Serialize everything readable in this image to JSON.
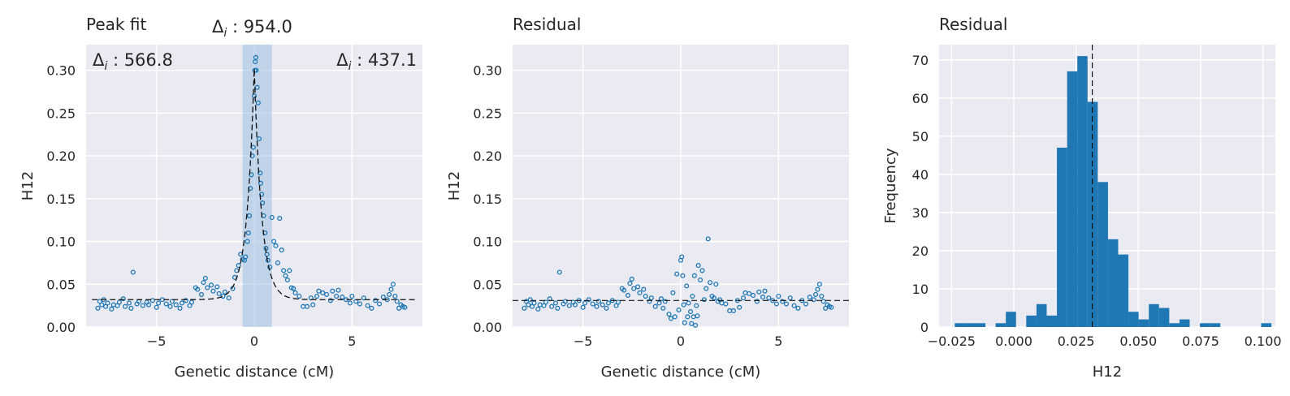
{
  "chart_data": [
    {
      "type": "scatter",
      "title": "Peak fit",
      "xlabel": "Genetic distance (cM)",
      "ylabel": "H12",
      "xlim": [
        -8.6,
        8.6
      ],
      "ylim": [
        0,
        0.33
      ],
      "xticks": [
        -5,
        0,
        5
      ],
      "xtick_labels": [
        "−5",
        "0",
        "5"
      ],
      "yticks": [
        0,
        0.05,
        0.1,
        0.15,
        0.2,
        0.25,
        0.3
      ],
      "ytick_labels": [
        "0.00",
        "0.05",
        "0.10",
        "0.15",
        "0.20",
        "0.25",
        "0.30"
      ],
      "grid": true,
      "annotations": [
        {
          "text": "Δ",
          "sub": "i",
          "value": " : 566.8",
          "placement": "top-left"
        },
        {
          "text": "Δ",
          "sub": "i",
          "value": " : 954.0",
          "placement": "above-center"
        },
        {
          "text": "Δ",
          "sub": "i",
          "value": " : 437.1",
          "placement": "top-right"
        }
      ],
      "shaded_span": [
        -0.6,
        0.9
      ],
      "fit": {
        "center": 0.0,
        "baseline": 0.032,
        "amplitude": 0.27,
        "width": 0.38
      },
      "points": [
        [
          -8.0,
          0.022
        ],
        [
          -7.9,
          0.03
        ],
        [
          -7.8,
          0.026
        ],
        [
          -7.7,
          0.032
        ],
        [
          -7.6,
          0.024
        ],
        [
          -7.5,
          0.028
        ],
        [
          -7.3,
          0.021
        ],
        [
          -7.2,
          0.026
        ],
        [
          -7.0,
          0.025
        ],
        [
          -6.9,
          0.029
        ],
        [
          -6.7,
          0.033
        ],
        [
          -6.6,
          0.024
        ],
        [
          -6.4,
          0.028
        ],
        [
          -6.3,
          0.022
        ],
        [
          -6.2,
          0.064
        ],
        [
          -6.0,
          0.027
        ],
        [
          -5.9,
          0.03
        ],
        [
          -5.7,
          0.025
        ],
        [
          -5.5,
          0.029
        ],
        [
          -5.4,
          0.026
        ],
        [
          -5.2,
          0.031
        ],
        [
          -5.0,
          0.023
        ],
        [
          -4.9,
          0.028
        ],
        [
          -4.7,
          0.032
        ],
        [
          -4.5,
          0.027
        ],
        [
          -4.3,
          0.024
        ],
        [
          -4.2,
          0.03
        ],
        [
          -4.0,
          0.026
        ],
        [
          -3.8,
          0.022
        ],
        [
          -3.7,
          0.028
        ],
        [
          -3.5,
          0.031
        ],
        [
          -3.3,
          0.025
        ],
        [
          -3.2,
          0.029
        ],
        [
          -3.0,
          0.046
        ],
        [
          -2.9,
          0.044
        ],
        [
          -2.7,
          0.038
        ],
        [
          -2.6,
          0.052
        ],
        [
          -2.5,
          0.057
        ],
        [
          -2.4,
          0.046
        ],
        [
          -2.2,
          0.049
        ],
        [
          -2.1,
          0.042
        ],
        [
          -1.9,
          0.047
        ],
        [
          -1.8,
          0.039
        ],
        [
          -1.6,
          0.036
        ],
        [
          -1.5,
          0.041
        ],
        [
          -1.3,
          0.034
        ],
        [
          -1.1,
          0.045
        ],
        [
          -1.0,
          0.058
        ],
        [
          -0.9,
          0.066
        ],
        [
          -0.8,
          0.072
        ],
        [
          -0.7,
          0.085
        ],
        [
          -0.6,
          0.079
        ],
        [
          -0.5,
          0.078
        ],
        [
          -0.45,
          0.082
        ],
        [
          -0.35,
          0.1
        ],
        [
          -0.3,
          0.11
        ],
        [
          -0.25,
          0.13
        ],
        [
          -0.2,
          0.162
        ],
        [
          -0.15,
          0.178
        ],
        [
          -0.1,
          0.2
        ],
        [
          -0.05,
          0.21
        ],
        [
          0.0,
          0.27
        ],
        [
          0.03,
          0.3
        ],
        [
          0.05,
          0.31
        ],
        [
          0.08,
          0.315
        ],
        [
          0.1,
          0.3
        ],
        [
          0.15,
          0.28
        ],
        [
          0.2,
          0.262
        ],
        [
          0.25,
          0.22
        ],
        [
          0.3,
          0.18
        ],
        [
          0.33,
          0.168
        ],
        [
          0.38,
          0.155
        ],
        [
          0.42,
          0.145
        ],
        [
          0.48,
          0.13
        ],
        [
          0.55,
          0.11
        ],
        [
          0.6,
          0.092
        ],
        [
          0.65,
          0.085
        ],
        [
          0.7,
          0.078
        ],
        [
          0.8,
          0.07
        ],
        [
          0.9,
          0.128
        ],
        [
          1.0,
          0.1
        ],
        [
          1.1,
          0.095
        ],
        [
          1.2,
          0.075
        ],
        [
          1.3,
          0.127
        ],
        [
          1.4,
          0.09
        ],
        [
          1.5,
          0.066
        ],
        [
          1.6,
          0.06
        ],
        [
          1.7,
          0.055
        ],
        [
          1.8,
          0.066
        ],
        [
          1.9,
          0.046
        ],
        [
          2.0,
          0.045
        ],
        [
          2.1,
          0.04
        ],
        [
          2.3,
          0.036
        ],
        [
          2.5,
          0.024
        ],
        [
          2.7,
          0.024
        ],
        [
          2.9,
          0.034
        ],
        [
          3.0,
          0.026
        ],
        [
          3.2,
          0.036
        ],
        [
          3.3,
          0.042
        ],
        [
          3.5,
          0.04
        ],
        [
          3.7,
          0.038
        ],
        [
          3.9,
          0.031
        ],
        [
          4.0,
          0.042
        ],
        [
          4.2,
          0.036
        ],
        [
          4.3,
          0.043
        ],
        [
          4.5,
          0.035
        ],
        [
          4.7,
          0.032
        ],
        [
          4.9,
          0.028
        ],
        [
          5.0,
          0.036
        ],
        [
          5.2,
          0.03
        ],
        [
          5.4,
          0.027
        ],
        [
          5.6,
          0.034
        ],
        [
          5.8,
          0.025
        ],
        [
          6.0,
          0.022
        ],
        [
          6.2,
          0.031
        ],
        [
          6.4,
          0.027
        ],
        [
          6.6,
          0.035
        ],
        [
          6.8,
          0.032
        ],
        [
          6.9,
          0.038
        ],
        [
          7.0,
          0.044
        ],
        [
          7.1,
          0.05
        ],
        [
          7.2,
          0.036
        ],
        [
          7.3,
          0.03
        ],
        [
          7.4,
          0.022
        ],
        [
          7.5,
          0.026
        ],
        [
          7.6,
          0.024
        ],
        [
          7.7,
          0.023
        ]
      ]
    },
    {
      "type": "scatter",
      "title": "Residual",
      "xlabel": "Genetic distance (cM)",
      "ylabel": "H12",
      "xlim": [
        -8.6,
        8.6
      ],
      "ylim": [
        0,
        0.33
      ],
      "xticks": [
        -5,
        0,
        5
      ],
      "xtick_labels": [
        "−5",
        "0",
        "5"
      ],
      "yticks": [
        0,
        0.05,
        0.1,
        0.15,
        0.2,
        0.25,
        0.3
      ],
      "ytick_labels": [
        "0.00",
        "0.05",
        "0.10",
        "0.15",
        "0.20",
        "0.25",
        "0.30"
      ],
      "grid": true,
      "hline": 0.031,
      "points": [
        [
          -8.0,
          0.022
        ],
        [
          -7.9,
          0.03
        ],
        [
          -7.8,
          0.026
        ],
        [
          -7.7,
          0.032
        ],
        [
          -7.6,
          0.024
        ],
        [
          -7.5,
          0.028
        ],
        [
          -7.3,
          0.021
        ],
        [
          -7.2,
          0.026
        ],
        [
          -7.0,
          0.025
        ],
        [
          -6.9,
          0.029
        ],
        [
          -6.7,
          0.033
        ],
        [
          -6.6,
          0.024
        ],
        [
          -6.4,
          0.028
        ],
        [
          -6.3,
          0.022
        ],
        [
          -6.2,
          0.064
        ],
        [
          -6.0,
          0.027
        ],
        [
          -5.9,
          0.03
        ],
        [
          -5.7,
          0.025
        ],
        [
          -5.5,
          0.029
        ],
        [
          -5.4,
          0.026
        ],
        [
          -5.2,
          0.031
        ],
        [
          -5.0,
          0.023
        ],
        [
          -4.9,
          0.028
        ],
        [
          -4.7,
          0.032
        ],
        [
          -4.5,
          0.027
        ],
        [
          -4.3,
          0.024
        ],
        [
          -4.2,
          0.03
        ],
        [
          -4.0,
          0.026
        ],
        [
          -3.8,
          0.022
        ],
        [
          -3.7,
          0.028
        ],
        [
          -3.5,
          0.031
        ],
        [
          -3.3,
          0.025
        ],
        [
          -3.2,
          0.029
        ],
        [
          -3.0,
          0.045
        ],
        [
          -2.9,
          0.043
        ],
        [
          -2.7,
          0.037
        ],
        [
          -2.6,
          0.051
        ],
        [
          -2.5,
          0.056
        ],
        [
          -2.4,
          0.045
        ],
        [
          -2.2,
          0.047
        ],
        [
          -2.1,
          0.04
        ],
        [
          -1.9,
          0.044
        ],
        [
          -1.8,
          0.036
        ],
        [
          -1.6,
          0.03
        ],
        [
          -1.5,
          0.034
        ],
        [
          -1.3,
          0.024
        ],
        [
          -1.1,
          0.028
        ],
        [
          -1.0,
          0.033
        ],
        [
          -0.9,
          0.022
        ],
        [
          -0.8,
          0.03
        ],
        [
          -0.6,
          0.015
        ],
        [
          -0.5,
          0.01
        ],
        [
          -0.4,
          0.04
        ],
        [
          -0.3,
          0.012
        ],
        [
          -0.2,
          0.062
        ],
        [
          -0.1,
          0.02
        ],
        [
          0.0,
          0.078
        ],
        [
          0.05,
          0.082
        ],
        [
          0.1,
          0.06
        ],
        [
          0.15,
          0.026
        ],
        [
          0.2,
          0.005
        ],
        [
          0.3,
          0.048
        ],
        [
          0.35,
          0.012
        ],
        [
          0.4,
          0.028
        ],
        [
          0.5,
          0.018
        ],
        [
          0.55,
          0.004
        ],
        [
          0.6,
          0.036
        ],
        [
          0.65,
          0.012
        ],
        [
          0.7,
          0.06
        ],
        [
          0.75,
          0.002
        ],
        [
          0.8,
          0.025
        ],
        [
          0.85,
          0.013
        ],
        [
          0.9,
          0.072
        ],
        [
          1.0,
          0.055
        ],
        [
          1.1,
          0.066
        ],
        [
          1.2,
          0.032
        ],
        [
          1.3,
          0.045
        ],
        [
          1.4,
          0.103
        ],
        [
          1.5,
          0.052
        ],
        [
          1.6,
          0.036
        ],
        [
          1.7,
          0.034
        ],
        [
          1.8,
          0.05
        ],
        [
          1.9,
          0.03
        ],
        [
          2.0,
          0.032
        ],
        [
          2.1,
          0.028
        ],
        [
          2.3,
          0.027
        ],
        [
          2.5,
          0.019
        ],
        [
          2.7,
          0.019
        ],
        [
          2.9,
          0.031
        ],
        [
          3.0,
          0.023
        ],
        [
          3.2,
          0.034
        ],
        [
          3.3,
          0.04
        ],
        [
          3.5,
          0.039
        ],
        [
          3.7,
          0.037
        ],
        [
          3.9,
          0.03
        ],
        [
          4.0,
          0.041
        ],
        [
          4.2,
          0.035
        ],
        [
          4.3,
          0.042
        ],
        [
          4.5,
          0.034
        ],
        [
          4.7,
          0.031
        ],
        [
          4.9,
          0.027
        ],
        [
          5.0,
          0.036
        ],
        [
          5.2,
          0.03
        ],
        [
          5.4,
          0.027
        ],
        [
          5.6,
          0.034
        ],
        [
          5.8,
          0.025
        ],
        [
          6.0,
          0.022
        ],
        [
          6.2,
          0.031
        ],
        [
          6.4,
          0.027
        ],
        [
          6.6,
          0.035
        ],
        [
          6.8,
          0.032
        ],
        [
          6.9,
          0.038
        ],
        [
          7.0,
          0.044
        ],
        [
          7.1,
          0.05
        ],
        [
          7.2,
          0.036
        ],
        [
          7.3,
          0.03
        ],
        [
          7.4,
          0.022
        ],
        [
          7.5,
          0.026
        ],
        [
          7.6,
          0.024
        ],
        [
          7.7,
          0.023
        ]
      ]
    },
    {
      "type": "bar",
      "title": "Residual",
      "xlabel": "H12",
      "ylabel": "Frequency",
      "xlim": [
        -0.03,
        0.105
      ],
      "ylim": [
        0,
        74
      ],
      "xticks": [
        -0.025,
        0.0,
        0.025,
        0.05,
        0.075,
        0.1
      ],
      "xtick_labels": [
        "−0.025",
        "0.000",
        "0.025",
        "0.050",
        "0.075",
        "0.100"
      ],
      "yticks": [
        0,
        10,
        20,
        30,
        40,
        50,
        60,
        70
      ],
      "ytick_labels": [
        "0",
        "10",
        "20",
        "30",
        "40",
        "50",
        "60",
        "70"
      ],
      "grid": true,
      "vline": 0.0315,
      "bin_edges": [
        -0.0237,
        -0.0196,
        -0.0155,
        -0.0114,
        -0.0073,
        -0.0032,
        0.0009,
        0.005,
        0.0091,
        0.0132,
        0.0173,
        0.0214,
        0.0255,
        0.0296,
        0.0337,
        0.0378,
        0.0419,
        0.046,
        0.0501,
        0.0542,
        0.0583,
        0.0624,
        0.0665,
        0.0706,
        0.0747,
        0.0788,
        0.0829,
        0.087,
        0.0911,
        0.0952,
        0.0993,
        0.1034
      ],
      "counts": [
        1,
        1,
        1,
        0,
        1,
        4,
        0,
        3,
        6,
        3,
        47,
        67,
        71,
        59,
        38,
        23,
        19,
        4,
        2,
        6,
        5,
        1,
        2,
        0,
        1,
        1,
        0,
        0,
        0,
        0,
        1
      ]
    }
  ]
}
